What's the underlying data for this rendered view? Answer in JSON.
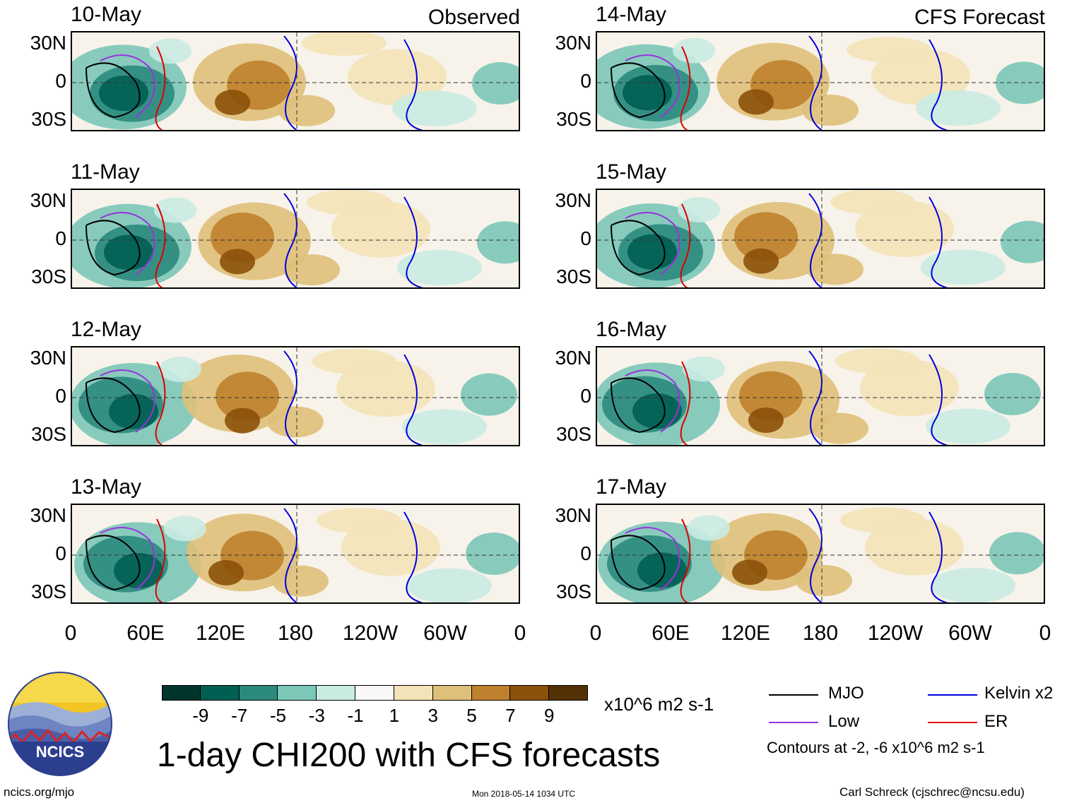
{
  "chart_data": {
    "type": "heatmap",
    "title": "1-day CHI200 with CFS forecasts",
    "variable": "CHI200",
    "units": "x10^6 m2 s-1",
    "panels_observed": {
      "label": "Observed",
      "dates": [
        "10-May",
        "11-May",
        "12-May",
        "13-May"
      ]
    },
    "panels_forecast": {
      "label": "CFS Forecast",
      "dates": [
        "14-May",
        "15-May",
        "16-May",
        "17-May"
      ]
    },
    "y_ticks": [
      "30N",
      "0",
      "30S"
    ],
    "x_ticks": [
      "0",
      "60E",
      "120E",
      "180",
      "120W",
      "60W",
      "0"
    ],
    "colorbar": {
      "labels": [
        "-9",
        "-7",
        "-5",
        "-3",
        "-1",
        "1",
        "3",
        "5",
        "7",
        "9"
      ],
      "colors": [
        "#00352b",
        "#005f52",
        "#2c8a7d",
        "#7bc7b8",
        "#c9ebe2",
        "#f8f8f8",
        "#f3e3b8",
        "#dfc07a",
        "#bf812d",
        "#8c510a",
        "#543005"
      ]
    },
    "legend": [
      {
        "name": "MJO",
        "color": "#000000"
      },
      {
        "name": "Kelvin x2",
        "color": "#0000dd"
      },
      {
        "name": "Low",
        "color": "#9933dd"
      },
      {
        "name": "ER",
        "color": "#dd0000"
      }
    ],
    "contour_note": "Contours at -2, -6 x10^6 m2 s-1"
  },
  "footer": {
    "logo_text": "NCICS",
    "url": "ncics.org/mjo",
    "timestamp": "Mon 2018-05-14 1034 UTC",
    "author": "Carl Schreck (cjschrec@ncsu.edu)"
  }
}
